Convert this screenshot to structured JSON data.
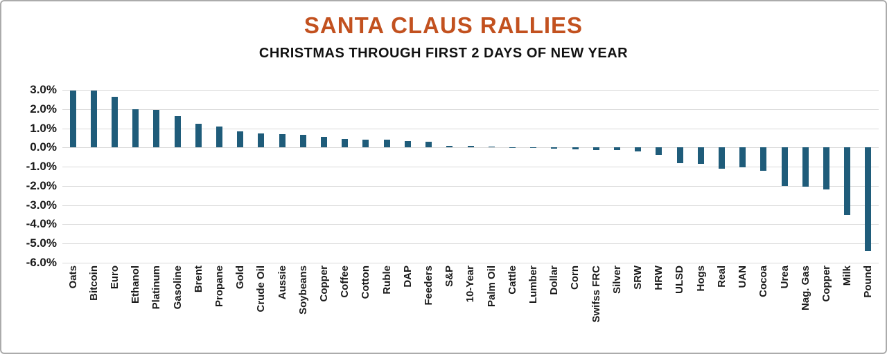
{
  "chart_data": {
    "type": "bar",
    "title": "SANTA CLAUS RALLIES",
    "subtitle": "CHRISTMAS THROUGH FIRST 2 DAYS OF NEW YEAR",
    "categories": [
      "Oats",
      "Bitcoin",
      "Euro",
      "Ethanol",
      "Platinum",
      "Gasoline",
      "Brent",
      "Propane",
      "Gold",
      "Crude Oil",
      "Aussie",
      "Soybeans",
      "Copper",
      "Coffee",
      "Cotton",
      "Ruble",
      "DAP",
      "Feeders",
      "S&P",
      "10-Year",
      "Palm Oil",
      "Cattle",
      "Lumber",
      "Dollar",
      "Corn",
      "Swifss FRC",
      "Silver",
      "SRW",
      "HRW",
      "ULSD",
      "Hogs",
      "Real",
      "UAN",
      "Cocoa",
      "Urea",
      "Nag. Gas",
      "Copper",
      "Milk",
      "Pound"
    ],
    "values": [
      2.95,
      2.95,
      2.65,
      2.0,
      1.95,
      1.65,
      1.25,
      1.1,
      0.85,
      0.75,
      0.7,
      0.65,
      0.55,
      0.45,
      0.4,
      0.4,
      0.35,
      0.3,
      0.1,
      0.08,
      0.05,
      0.02,
      -0.02,
      -0.05,
      -0.1,
      -0.15,
      -0.15,
      -0.2,
      -0.4,
      -0.8,
      -0.85,
      -1.1,
      -1.05,
      -1.2,
      -2.0,
      -2.05,
      -2.2,
      -3.5,
      -5.4
    ],
    "ylim": [
      -6.0,
      3.0
    ],
    "yticks": [
      3,
      2,
      1,
      0,
      -1,
      -2,
      -3,
      -4,
      -5,
      -6
    ],
    "ytick_labels": [
      "3.0%",
      "2.0%",
      "1.0%",
      "0.0%",
      "-1.0%",
      "-2.0%",
      "-3.0%",
      "-4.0%",
      "-5.0%",
      "-6.0%"
    ],
    "grid": true,
    "legend": false,
    "colors": {
      "bar": "#1F5C7A",
      "title": "#C2511F",
      "grid": "#D9D9D9",
      "axis_text": "#1A1A1A"
    }
  }
}
